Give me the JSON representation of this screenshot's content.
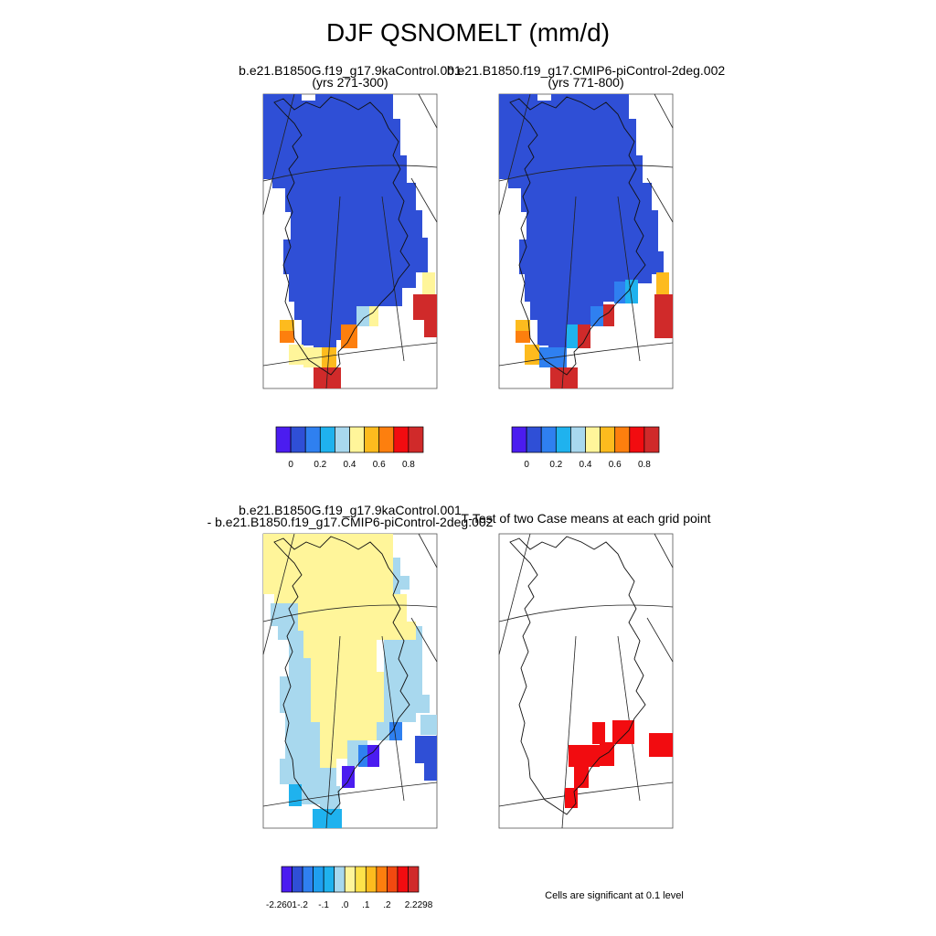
{
  "title": "DJF QSNOMELT (mm/d)",
  "panels": [
    {
      "id": "p1",
      "line1": "b.e21.B1850G.f19_g17.9kaControl.001",
      "line2": "(yrs 271-300)"
    },
    {
      "id": "p2",
      "line1": "b.e21.B1850.f19_g17.CMIP6-piControl-2deg.002",
      "line2": "(yrs 771-800)"
    },
    {
      "id": "p3",
      "line1": "b.e21.B1850G.f19_g17.9kaControl.001",
      "line2": "- b.e21.B1850.f19_g17.CMIP6-piControl-2deg.002"
    },
    {
      "id": "p4",
      "line1": "T-Test of two Case means at each grid point",
      "line2": ""
    }
  ],
  "colorbars": {
    "abs": {
      "colors": [
        "#4b1cf0",
        "#2f4fd6",
        "#2f80f0",
        "#1fb2ee",
        "#a8d8ee",
        "#fff59a",
        "#fdbb1e",
        "#fd7f0e",
        "#f20c10",
        "#d02a2a"
      ],
      "ticks": [
        "0",
        "0.2",
        "0.4",
        "0.6",
        "0.8"
      ]
    },
    "diff": {
      "colors": [
        "#4b1cf0",
        "#2f4fd6",
        "#2f80f0",
        "#1f9ff0",
        "#1fb2ee",
        "#a8d8ee",
        "#fff59a",
        "#fde24a",
        "#fdbb1e",
        "#fd7f0e",
        "#f24a10",
        "#f20c10",
        "#d02a2a"
      ],
      "ticks": [
        "-2.2601",
        "-.2",
        "-.1",
        ".0",
        ".1",
        ".2",
        "2.2298"
      ]
    }
  },
  "footnote": "Cells are significant at 0.1 level",
  "colors": {
    "deep_blue": "#2f4fd6",
    "light_yellow": "#fff59a",
    "light_blue": "#a8d8ee",
    "sky": "#1fb2ee",
    "significant": "#f20c10",
    "dark_red": "#d02a2a"
  }
}
